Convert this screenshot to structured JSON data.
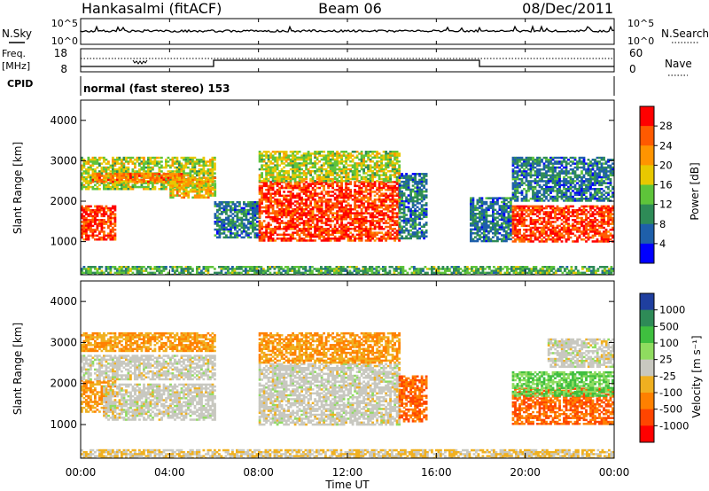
{
  "header": {
    "station": "Hankasalmi (fitACF)",
    "beam": "Beam 06",
    "date": "08/Dec/2011"
  },
  "status_panel": {
    "nsky_label": "N.Sky",
    "nsearch_label": "N.Search",
    "freq_label_line1": "Freq.",
    "freq_label_line2": "[MHz]",
    "nave_label": "Nave",
    "cpid_label": "CPID",
    "cpid_text": "normal (fast stereo) 153",
    "nsky_ticks": [
      "10^5",
      "10^0"
    ],
    "nsearch_ticks": [
      "10^5",
      "10^0"
    ],
    "freq_ticks": [
      "18",
      "8"
    ],
    "nave_ticks": [
      "60",
      "0"
    ]
  },
  "axes": {
    "y_label": "Slant Range [km]",
    "y_ticks": [
      "4000",
      "3000",
      "2000",
      "1000"
    ],
    "x_label": "Time UT",
    "x_ticks": [
      "00:00",
      "04:00",
      "08:00",
      "12:00",
      "16:00",
      "20:00",
      "00:00"
    ]
  },
  "power_scale": {
    "label": "Power [dB]",
    "ticks": [
      "28",
      "24",
      "20",
      "16",
      "12",
      "8",
      "4"
    ],
    "colors": [
      "#ff0000",
      "#ff5a00",
      "#ff9400",
      "#e8c800",
      "#5ec43a",
      "#2e8b57",
      "#1e5faa",
      "#0000ff"
    ]
  },
  "velocity_scale": {
    "label": "Velocity [m s⁻¹]",
    "ticks": [
      "1000",
      "500",
      "100",
      "25",
      "-25",
      "-100",
      "-500",
      "-1000"
    ],
    "colors": [
      "#1f3f9f",
      "#2e8b57",
      "#3fbf3f",
      "#8fdc5f",
      "#c8c8c0",
      "#f0b020",
      "#ff8000",
      "#ff4500",
      "#ff0000"
    ]
  },
  "chart_data": {
    "type": "heatmap",
    "x_range_hours": [
      0,
      24
    ],
    "y_range_km": [
      180,
      4500
    ],
    "power_panel": {
      "colorbar_label": "Power [dB]",
      "colorbar_range": [
        0,
        32
      ],
      "regions": [
        {
          "t": [
            0.0,
            1.5
          ],
          "r": [
            1050,
            1900
          ],
          "power": 28
        },
        {
          "t": [
            0.0,
            6.0
          ],
          "r": [
            2300,
            3100
          ],
          "power": 16
        },
        {
          "t": [
            0.5,
            4.5
          ],
          "r": [
            2500,
            2700
          ],
          "power": 24
        },
        {
          "t": [
            4.0,
            6.0
          ],
          "r": [
            2100,
            2600
          ],
          "power": 20
        },
        {
          "t": [
            6.0,
            8.0
          ],
          "r": [
            1100,
            2000
          ],
          "power": 8
        },
        {
          "t": [
            8.0,
            14.3
          ],
          "r": [
            1050,
            2500
          ],
          "power": 28
        },
        {
          "t": [
            8.0,
            14.3
          ],
          "r": [
            2500,
            3250
          ],
          "power": 16
        },
        {
          "t": [
            14.3,
            15.5
          ],
          "r": [
            1100,
            2700
          ],
          "power": 8
        },
        {
          "t": [
            17.5,
            19.3
          ],
          "r": [
            1000,
            2100
          ],
          "power": 8
        },
        {
          "t": [
            19.4,
            24.0
          ],
          "r": [
            1000,
            1900
          ],
          "power": 28
        },
        {
          "t": [
            19.4,
            24.0
          ],
          "r": [
            2000,
            3100
          ],
          "power": 8
        },
        {
          "t": [
            0.0,
            24.0
          ],
          "r": [
            180,
            400
          ],
          "power": 12
        }
      ]
    },
    "velocity_panel": {
      "colorbar_label": "Velocity [m s⁻¹]",
      "colorbar_range": [
        -1000,
        1000
      ],
      "regions": [
        {
          "t": [
            0.0,
            1.5
          ],
          "r": [
            1300,
            2100
          ],
          "velocity": -100
        },
        {
          "t": [
            0.0,
            6.0
          ],
          "r": [
            2100,
            2700
          ],
          "velocity": 0
        },
        {
          "t": [
            0.0,
            6.0
          ],
          "r": [
            2800,
            3250
          ],
          "velocity": -100
        },
        {
          "t": [
            1.0,
            6.0
          ],
          "r": [
            1100,
            2000
          ],
          "velocity": 0
        },
        {
          "t": [
            8.0,
            14.3
          ],
          "r": [
            1000,
            2500
          ],
          "velocity": 0
        },
        {
          "t": [
            8.0,
            14.3
          ],
          "r": [
            2500,
            3250
          ],
          "velocity": -100
        },
        {
          "t": [
            14.3,
            15.5
          ],
          "r": [
            1100,
            2200
          ],
          "velocity": -500
        },
        {
          "t": [
            19.4,
            24.0
          ],
          "r": [
            1000,
            1900
          ],
          "velocity": -500
        },
        {
          "t": [
            19.4,
            24.0
          ],
          "r": [
            1700,
            2300
          ],
          "velocity": 100
        },
        {
          "t": [
            21.0,
            24.0
          ],
          "r": [
            2400,
            3100
          ],
          "velocity": 0
        },
        {
          "t": [
            0.0,
            24.0
          ],
          "r": [
            180,
            400
          ],
          "velocity": -25
        }
      ]
    }
  }
}
